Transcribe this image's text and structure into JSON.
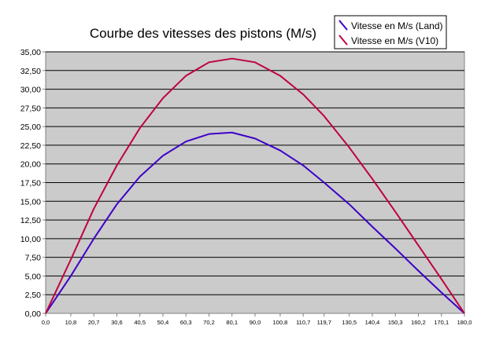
{
  "chart_data": {
    "type": "line",
    "title": "Courbe des vitesses des pistons (M/s)",
    "xlabel": "",
    "ylabel": "",
    "categories": [
      "0,0",
      "10,8",
      "20,7",
      "30,6",
      "40,5",
      "50,4",
      "60,3",
      "70,2",
      "80,1",
      "90,0",
      "100,8",
      "110,7",
      "119,7",
      "130,5",
      "140,4",
      "150,3",
      "160,2",
      "170,1",
      "180,0"
    ],
    "x": [
      0.0,
      10.8,
      20.7,
      30.6,
      40.5,
      50.4,
      60.3,
      70.2,
      80.1,
      90.0,
      100.8,
      110.7,
      119.7,
      130.5,
      140.4,
      150.3,
      160.2,
      170.1,
      180.0
    ],
    "ylim": [
      0,
      35
    ],
    "yticks": [
      "0,00",
      "2,50",
      "5,00",
      "7,50",
      "10,00",
      "12,50",
      "15,00",
      "17,50",
      "20,00",
      "22,50",
      "25,00",
      "27,50",
      "30,00",
      "32,50",
      "35,00"
    ],
    "grid": true,
    "legend_position": "top-right",
    "series": [
      {
        "name": "Vitesse en M/s (Land)",
        "color": "#3d00c8",
        "values": [
          0.0,
          5.0,
          10.0,
          14.6,
          18.3,
          21.1,
          23.0,
          24.0,
          24.2,
          23.4,
          21.8,
          19.8,
          17.5,
          14.6,
          11.6,
          8.7,
          5.7,
          2.8,
          0.0
        ]
      },
      {
        "name": "Vitesse en M/s (V10)",
        "color": "#c00040",
        "values": [
          0.0,
          7.2,
          14.0,
          19.8,
          24.8,
          28.8,
          31.8,
          33.6,
          34.1,
          33.6,
          31.8,
          29.3,
          26.4,
          22.2,
          18.0,
          13.6,
          9.1,
          4.6,
          0.0
        ]
      }
    ]
  }
}
